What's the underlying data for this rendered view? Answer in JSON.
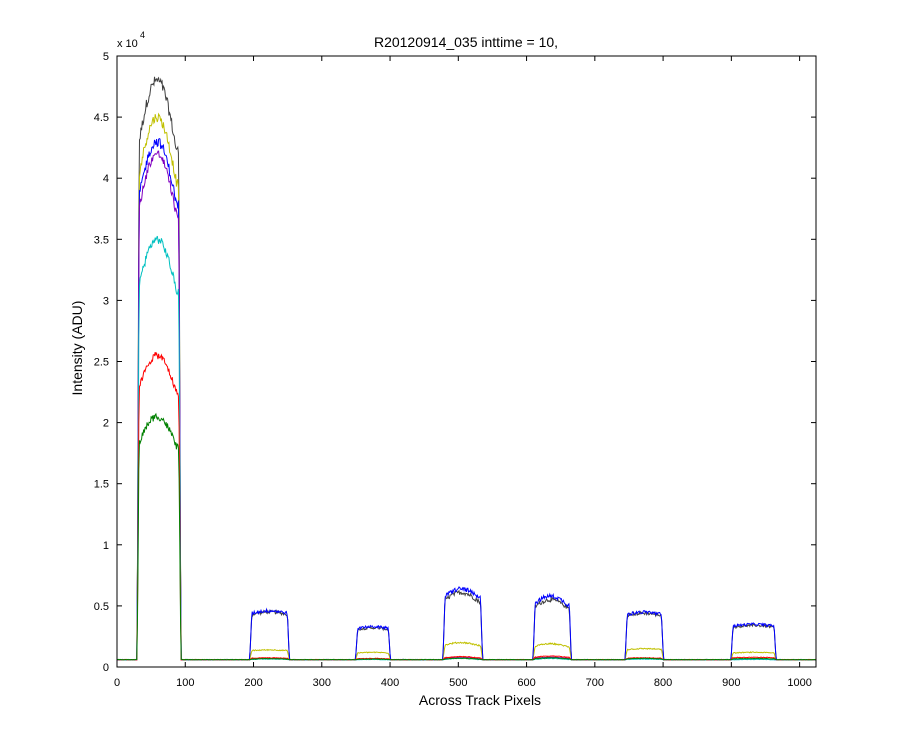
{
  "chart_data": {
    "type": "line",
    "title": "R20120914_035 inttime = 10,",
    "xlabel": "Across Track Pixels",
    "ylabel": "Intensity (ADU)",
    "exponent_prefix": "x 10",
    "exponent_power": "4",
    "xlim": [
      0,
      1024
    ],
    "ylim": [
      0,
      50000
    ],
    "xticks": [
      0,
      100,
      200,
      300,
      400,
      500,
      600,
      700,
      800,
      900,
      1000
    ],
    "xtick_labels": [
      "0",
      "100",
      "200",
      "300",
      "400",
      "500",
      "600",
      "700",
      "800",
      "900",
      "1000"
    ],
    "yticks": [
      0,
      5000,
      10000,
      15000,
      20000,
      25000,
      30000,
      35000,
      40000,
      45000,
      50000
    ],
    "ytick_labels": [
      "0",
      "0.5",
      "1",
      "1.5",
      "2",
      "2.5",
      "3",
      "3.5",
      "4",
      "4.5",
      "5"
    ],
    "grid": false,
    "legend": "none",
    "baseline": 600,
    "segments": [
      {
        "x_start": 30,
        "x_end": 93,
        "shape": "peaked"
      },
      {
        "x_start": 195,
        "x_end": 252,
        "shape": "flat"
      },
      {
        "x_start": 350,
        "x_end": 400,
        "shape": "flat"
      },
      {
        "x_start": 478,
        "x_end": 535,
        "shape": "peaked"
      },
      {
        "x_start": 610,
        "x_end": 665,
        "shape": "peaked"
      },
      {
        "x_start": 745,
        "x_end": 800,
        "shape": "flat"
      },
      {
        "x_start": 900,
        "x_end": 965,
        "shape": "flat"
      }
    ],
    "series": [
      {
        "color": "#404040",
        "noise": 450,
        "levels": [
          48000,
          4500,
          3200,
          6100,
          5500,
          4400,
          3400
        ]
      },
      {
        "color": "#c0c000",
        "noise": 400,
        "levels": [
          45000,
          1400,
          1200,
          2000,
          1900,
          1500,
          1200
        ]
      },
      {
        "color": "#0000ff",
        "noise": 400,
        "levels": [
          43000,
          4600,
          3300,
          6400,
          5800,
          4500,
          3500
        ]
      },
      {
        "color": "#8000c0",
        "noise": 350,
        "levels": [
          42000,
          700,
          650,
          800,
          800,
          700,
          650
        ]
      },
      {
        "color": "#00c0c0",
        "noise": 350,
        "levels": [
          35000,
          650,
          620,
          700,
          700,
          650,
          620
        ]
      },
      {
        "color": "#ff0000",
        "noise": 300,
        "levels": [
          25500,
          750,
          700,
          850,
          900,
          750,
          800
        ]
      },
      {
        "color": "#008000",
        "noise": 300,
        "levels": [
          20500,
          680,
          650,
          720,
          750,
          700,
          700
        ]
      }
    ]
  }
}
